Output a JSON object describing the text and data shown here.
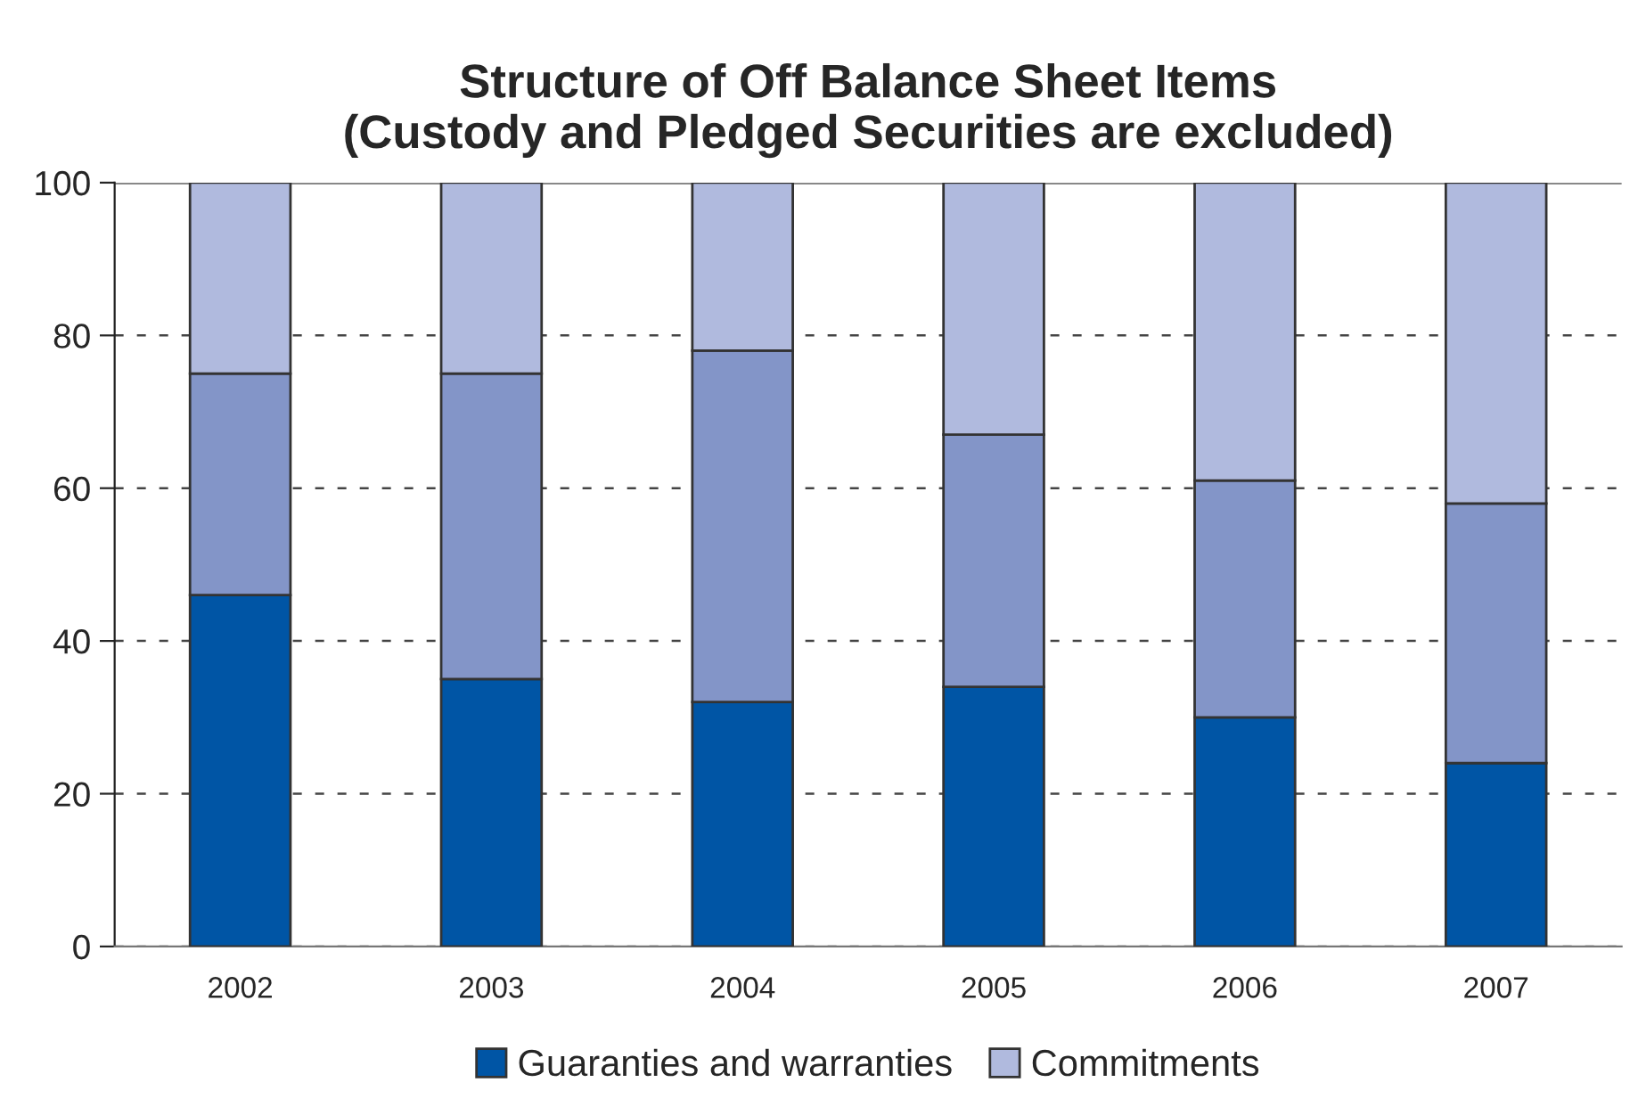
{
  "chart_data": {
    "type": "bar",
    "title": "Structure of Off Balance Sheet Items\n(Custody and Pledged Securities are excluded)",
    "categories": [
      "2002",
      "2003",
      "2004",
      "2005",
      "2006",
      "2007"
    ],
    "stacked": true,
    "series": [
      {
        "name": "Guaranties and warranties",
        "color": "#0055a5",
        "values": [
          46,
          35,
          32,
          34,
          30,
          24
        ]
      },
      {
        "color": "#8395c8",
        "values": [
          29,
          40,
          46,
          33,
          31,
          34
        ]
      },
      {
        "name": "Commitments",
        "color": "#b0bade",
        "values": [
          25,
          25,
          22,
          33,
          39,
          42
        ]
      }
    ],
    "ylim": [
      0,
      100
    ],
    "yticks": [
      0,
      20,
      40,
      60,
      80,
      100
    ],
    "grid": "y",
    "line_style": "dashed",
    "legend": "bottom"
  }
}
